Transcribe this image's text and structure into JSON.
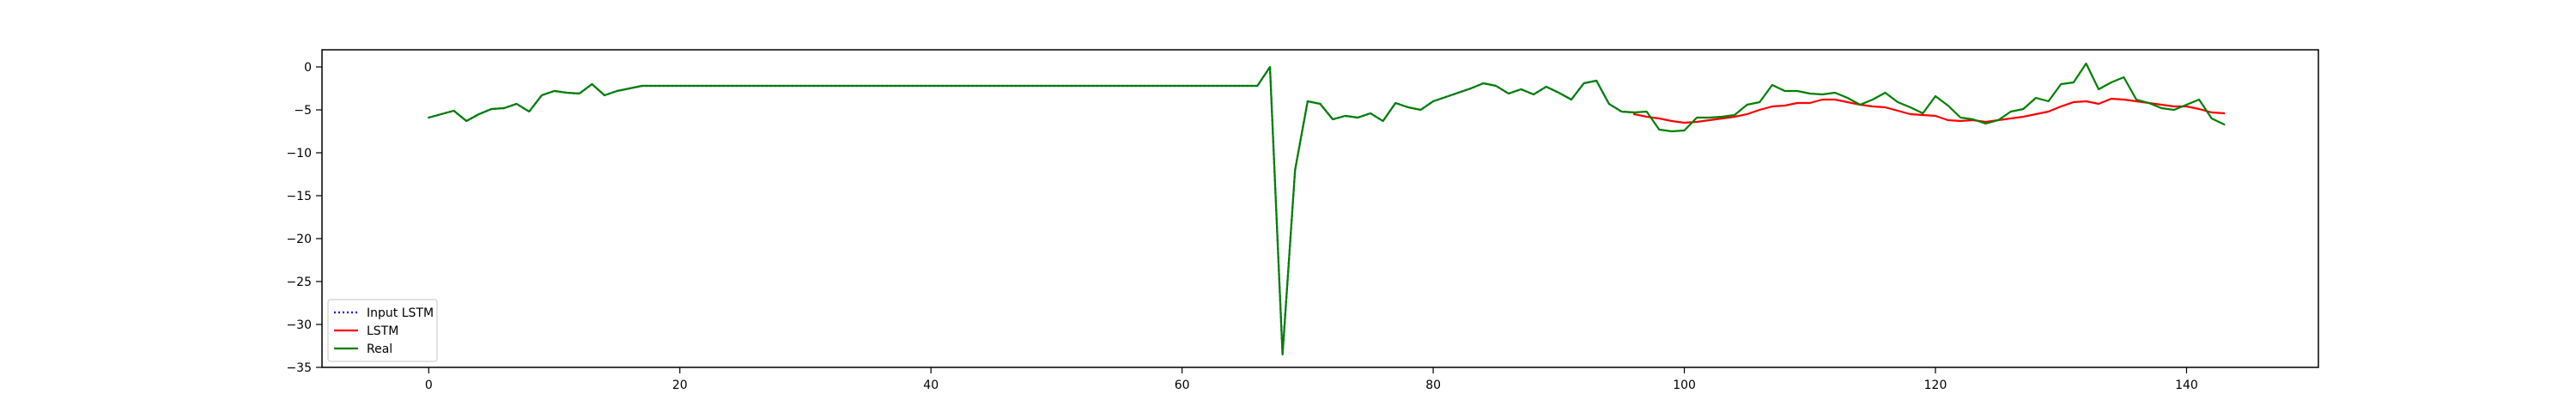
{
  "chart_data": {
    "type": "line",
    "title": "",
    "xlabel": "",
    "ylabel": "",
    "xlim": [
      -8.5,
      150.5
    ],
    "ylim": [
      -35,
      2
    ],
    "x_ticks": [
      0,
      20,
      40,
      60,
      80,
      100,
      120,
      140
    ],
    "y_ticks": [
      0,
      -5,
      -10,
      -15,
      -20,
      -25,
      -30,
      -35
    ],
    "grid": false,
    "legend_position": "lower-left",
    "series": [
      {
        "name": "Input LSTM",
        "color": "#0000ff",
        "style": "dotted",
        "x": [
          0,
          1,
          2,
          3,
          4,
          5,
          6,
          7,
          8,
          9,
          10,
          11,
          12,
          13,
          14,
          15,
          16,
          17,
          66,
          67,
          68,
          69,
          70,
          71,
          72,
          73,
          74,
          75,
          76,
          77,
          78,
          79,
          80,
          81,
          82,
          83,
          84,
          85,
          86,
          87,
          88,
          89,
          90,
          91,
          92,
          93,
          94,
          95,
          96
        ],
        "y": [
          -5.9,
          -5.5,
          -5.1,
          -6.3,
          -5.5,
          -4.9,
          -4.8,
          -4.3,
          -5.2,
          -3.3,
          -2.8,
          -3.0,
          -3.1,
          -2.0,
          -3.3,
          -2.8,
          -2.5,
          -2.2,
          -2.2,
          0.0,
          -33.5,
          -12.0,
          -4.0,
          -4.3,
          -6.1,
          -5.7,
          -5.9,
          -5.4,
          -6.3,
          -4.2,
          -4.7,
          -5.0,
          -4.0,
          -3.5,
          -3.0,
          -2.5,
          -1.9,
          -2.2,
          -3.1,
          -2.6,
          -3.2,
          -2.3,
          -3.0,
          -3.8,
          -1.9,
          -1.6,
          -4.3,
          -5.2,
          -5.3
        ]
      },
      {
        "name": "LSTM",
        "color": "#ff0000",
        "style": "solid",
        "x": [
          96,
          97,
          98,
          99,
          100,
          101,
          102,
          103,
          104,
          105,
          106,
          107,
          108,
          109,
          110,
          111,
          112,
          113,
          114,
          115,
          116,
          117,
          118,
          119,
          120,
          121,
          122,
          123,
          124,
          125,
          126,
          127,
          128,
          129,
          130,
          131,
          132,
          133,
          134,
          135,
          136,
          137,
          138,
          139,
          140,
          141,
          142,
          143
        ],
        "y": [
          -5.5,
          -5.8,
          -6.0,
          -6.3,
          -6.5,
          -6.4,
          -6.2,
          -6.0,
          -5.8,
          -5.5,
          -5.0,
          -4.6,
          -4.5,
          -4.2,
          -4.2,
          -3.8,
          -3.8,
          -4.1,
          -4.4,
          -4.6,
          -4.7,
          -5.1,
          -5.5,
          -5.6,
          -5.7,
          -6.2,
          -6.3,
          -6.2,
          -6.4,
          -6.2,
          -6.0,
          -5.8,
          -5.5,
          -5.2,
          -4.6,
          -4.1,
          -4.0,
          -4.3,
          -3.7,
          -3.8,
          -4.0,
          -4.2,
          -4.4,
          -4.6,
          -4.6,
          -4.9,
          -5.3,
          -5.4
        ]
      },
      {
        "name": "Real",
        "color": "#008000",
        "style": "solid",
        "x": [
          0,
          1,
          2,
          3,
          4,
          5,
          6,
          7,
          8,
          9,
          10,
          11,
          12,
          13,
          14,
          15,
          16,
          17,
          66,
          67,
          68,
          69,
          70,
          71,
          72,
          73,
          74,
          75,
          76,
          77,
          78,
          79,
          80,
          81,
          82,
          83,
          84,
          85,
          86,
          87,
          88,
          89,
          90,
          91,
          92,
          93,
          94,
          95,
          96,
          97,
          98,
          99,
          100,
          101,
          102,
          103,
          104,
          105,
          106,
          107,
          108,
          109,
          110,
          111,
          112,
          113,
          114,
          115,
          116,
          117,
          118,
          119,
          120,
          121,
          122,
          123,
          124,
          125,
          126,
          127,
          128,
          129,
          130,
          131,
          132,
          133,
          134,
          135,
          136,
          137,
          138,
          139,
          140,
          141,
          142,
          143
        ],
        "y": [
          -5.9,
          -5.5,
          -5.1,
          -6.3,
          -5.5,
          -4.9,
          -4.8,
          -4.3,
          -5.2,
          -3.3,
          -2.8,
          -3.0,
          -3.1,
          -2.0,
          -3.3,
          -2.8,
          -2.5,
          -2.2,
          -2.2,
          0.0,
          -33.5,
          -12.0,
          -4.0,
          -4.3,
          -6.1,
          -5.7,
          -5.9,
          -5.4,
          -6.3,
          -4.2,
          -4.7,
          -5.0,
          -4.0,
          -3.5,
          -3.0,
          -2.5,
          -1.9,
          -2.2,
          -3.1,
          -2.6,
          -3.2,
          -2.3,
          -3.0,
          -3.8,
          -1.9,
          -1.6,
          -4.3,
          -5.2,
          -5.3,
          -5.2,
          -7.3,
          -7.5,
          -7.4,
          -5.9,
          -5.9,
          -5.8,
          -5.6,
          -4.4,
          -4.1,
          -2.1,
          -2.8,
          -2.8,
          -3.1,
          -3.2,
          -3.0,
          -3.6,
          -4.4,
          -3.8,
          -3.0,
          -4.1,
          -4.7,
          -5.4,
          -3.4,
          -4.5,
          -5.9,
          -6.1,
          -6.6,
          -6.2,
          -5.2,
          -4.9,
          -3.6,
          -4.0,
          -2.0,
          -1.8,
          0.4,
          -2.6,
          -1.8,
          -1.2,
          -3.8,
          -4.2,
          -4.8,
          -5.0,
          -4.4,
          -3.8,
          -6.0,
          -6.7
        ]
      }
    ]
  }
}
